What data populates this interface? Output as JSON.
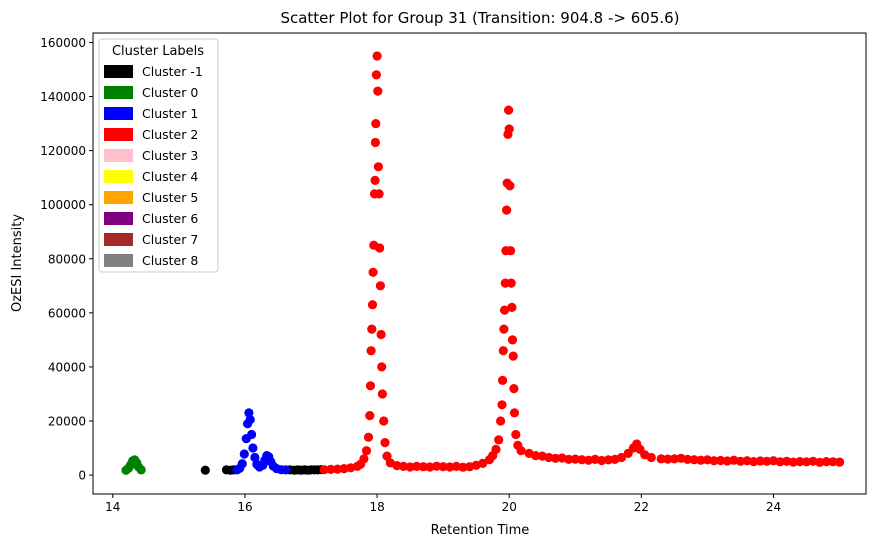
{
  "chart_data": {
    "type": "scatter",
    "title": "Scatter Plot for Group 31 (Transition: 904.8 -> 605.6)",
    "xlabel": "Retention Time",
    "ylabel": "OzESI Intensity",
    "xlim": [
      13.7,
      25.4
    ],
    "ylim": [
      -7000,
      163500
    ],
    "xticks": [
      14,
      16,
      18,
      20,
      22,
      24
    ],
    "yticks": [
      0,
      20000,
      40000,
      60000,
      80000,
      100000,
      120000,
      140000,
      160000
    ],
    "grid": false,
    "legend": {
      "title": "Cluster Labels",
      "placement": "top-left",
      "entries": [
        {
          "label": "Cluster -1",
          "color": "#000000"
        },
        {
          "label": "Cluster 0",
          "color": "#008000"
        },
        {
          "label": "Cluster 1",
          "color": "#0000ff"
        },
        {
          "label": "Cluster 2",
          "color": "#ff0000"
        },
        {
          "label": "Cluster 3",
          "color": "#ffc0cb"
        },
        {
          "label": "Cluster 4",
          "color": "#ffff00"
        },
        {
          "label": "Cluster 5",
          "color": "#ffa500"
        },
        {
          "label": "Cluster 6",
          "color": "#800080"
        },
        {
          "label": "Cluster 7",
          "color": "#a52a2a"
        },
        {
          "label": "Cluster 8",
          "color": "#808080"
        }
      ]
    },
    "series": [
      {
        "name": "Cluster -1",
        "color": "#000000",
        "points": [
          [
            15.4,
            1800
          ],
          [
            15.72,
            1900
          ],
          [
            15.78,
            1800
          ],
          [
            15.83,
            1900
          ],
          [
            16.68,
            1900
          ],
          [
            16.75,
            1800
          ],
          [
            16.8,
            1900
          ],
          [
            16.85,
            1800
          ],
          [
            16.9,
            1900
          ],
          [
            16.95,
            1800
          ],
          [
            17.0,
            1900
          ],
          [
            17.05,
            1900
          ],
          [
            17.1,
            1900
          ],
          [
            17.15,
            2000
          ]
        ]
      },
      {
        "name": "Cluster 0",
        "color": "#008000",
        "points": [
          [
            14.2,
            1800
          ],
          [
            14.24,
            2600
          ],
          [
            14.27,
            3800
          ],
          [
            14.3,
            5200
          ],
          [
            14.33,
            5600
          ],
          [
            14.36,
            4600
          ],
          [
            14.39,
            3000
          ],
          [
            14.43,
            1900
          ]
        ]
      },
      {
        "name": "Cluster 1",
        "color": "#0000ff",
        "points": [
          [
            15.88,
            1900
          ],
          [
            15.92,
            2500
          ],
          [
            15.96,
            4200
          ],
          [
            15.99,
            7800
          ],
          [
            16.02,
            13500
          ],
          [
            16.04,
            19000
          ],
          [
            16.06,
            23000
          ],
          [
            16.08,
            20500
          ],
          [
            16.1,
            15000
          ],
          [
            16.12,
            10000
          ],
          [
            16.15,
            6500
          ],
          [
            16.18,
            4000
          ],
          [
            16.22,
            3000
          ],
          [
            16.27,
            3600
          ],
          [
            16.3,
            5500
          ],
          [
            16.33,
            7200
          ],
          [
            16.36,
            6800
          ],
          [
            16.39,
            5000
          ],
          [
            16.43,
            3300
          ],
          [
            16.48,
            2400
          ],
          [
            16.55,
            2000
          ],
          [
            16.62,
            1900
          ]
        ]
      },
      {
        "name": "Cluster 2",
        "color": "#ff0000",
        "points": [
          [
            17.2,
            2000
          ],
          [
            17.3,
            2100
          ],
          [
            17.4,
            2200
          ],
          [
            17.5,
            2400
          ],
          [
            17.6,
            2700
          ],
          [
            17.7,
            3200
          ],
          [
            17.75,
            4000
          ],
          [
            17.8,
            6000
          ],
          [
            17.84,
            9000
          ],
          [
            17.87,
            14000
          ],
          [
            17.89,
            22000
          ],
          [
            17.9,
            33000
          ],
          [
            17.91,
            46000
          ],
          [
            17.92,
            54000
          ],
          [
            17.93,
            63000
          ],
          [
            17.94,
            75000
          ],
          [
            17.95,
            85000
          ],
          [
            17.96,
            104000
          ],
          [
            17.97,
            109000
          ],
          [
            17.975,
            123000
          ],
          [
            17.98,
            130000
          ],
          [
            17.99,
            148000
          ],
          [
            18.0,
            155000
          ],
          [
            18.01,
            142000
          ],
          [
            18.02,
            114000
          ],
          [
            18.03,
            104000
          ],
          [
            18.04,
            84000
          ],
          [
            18.05,
            70000
          ],
          [
            18.06,
            52000
          ],
          [
            18.07,
            40000
          ],
          [
            18.08,
            30000
          ],
          [
            18.1,
            20000
          ],
          [
            18.12,
            12000
          ],
          [
            18.15,
            7000
          ],
          [
            18.2,
            4500
          ],
          [
            18.3,
            3500
          ],
          [
            18.4,
            3200
          ],
          [
            18.5,
            3000
          ],
          [
            18.6,
            3200
          ],
          [
            18.7,
            3100
          ],
          [
            18.8,
            3000
          ],
          [
            18.9,
            3300
          ],
          [
            19.0,
            3100
          ],
          [
            19.1,
            3000
          ],
          [
            19.2,
            3200
          ],
          [
            19.3,
            2900
          ],
          [
            19.4,
            3100
          ],
          [
            19.5,
            3600
          ],
          [
            19.6,
            4300
          ],
          [
            19.7,
            5700
          ],
          [
            19.75,
            7200
          ],
          [
            19.8,
            9500
          ],
          [
            19.84,
            13000
          ],
          [
            19.87,
            20000
          ],
          [
            19.89,
            26000
          ],
          [
            19.9,
            35000
          ],
          [
            19.91,
            46000
          ],
          [
            19.92,
            54000
          ],
          [
            19.93,
            61000
          ],
          [
            19.94,
            71000
          ],
          [
            19.95,
            83000
          ],
          [
            19.96,
            98000
          ],
          [
            19.97,
            108000
          ],
          [
            19.98,
            126000
          ],
          [
            19.99,
            135000
          ],
          [
            20.0,
            128000
          ],
          [
            20.01,
            107000
          ],
          [
            20.02,
            83000
          ],
          [
            20.03,
            71000
          ],
          [
            20.04,
            62000
          ],
          [
            20.05,
            50000
          ],
          [
            20.06,
            44000
          ],
          [
            20.07,
            32000
          ],
          [
            20.08,
            23000
          ],
          [
            20.1,
            15000
          ],
          [
            20.13,
            11000
          ],
          [
            20.18,
            9000
          ],
          [
            20.3,
            8000
          ],
          [
            20.4,
            7200
          ],
          [
            20.5,
            7000
          ],
          [
            20.6,
            6500
          ],
          [
            20.7,
            6200
          ],
          [
            20.8,
            6300
          ],
          [
            20.9,
            5800
          ],
          [
            21.0,
            5900
          ],
          [
            21.1,
            5700
          ],
          [
            21.2,
            5500
          ],
          [
            21.3,
            5800
          ],
          [
            21.4,
            5400
          ],
          [
            21.5,
            5600
          ],
          [
            21.6,
            5800
          ],
          [
            21.7,
            6500
          ],
          [
            21.8,
            8000
          ],
          [
            21.88,
            10000
          ],
          [
            21.93,
            11500
          ],
          [
            21.98,
            9500
          ],
          [
            22.05,
            7500
          ],
          [
            22.15,
            6500
          ],
          [
            22.3,
            6000
          ],
          [
            22.4,
            5900
          ],
          [
            22.5,
            6000
          ],
          [
            22.6,
            6200
          ],
          [
            22.7,
            5800
          ],
          [
            22.8,
            5700
          ],
          [
            22.9,
            5500
          ],
          [
            23.0,
            5600
          ],
          [
            23.1,
            5300
          ],
          [
            23.2,
            5400
          ],
          [
            23.3,
            5200
          ],
          [
            23.4,
            5500
          ],
          [
            23.5,
            5100
          ],
          [
            23.6,
            5300
          ],
          [
            23.7,
            5000
          ],
          [
            23.8,
            5200
          ],
          [
            23.9,
            5100
          ],
          [
            24.0,
            5300
          ],
          [
            24.1,
            4900
          ],
          [
            24.2,
            5100
          ],
          [
            24.3,
            4800
          ],
          [
            24.4,
            5000
          ],
          [
            24.5,
            4900
          ],
          [
            24.6,
            5100
          ],
          [
            24.7,
            4700
          ],
          [
            24.8,
            5000
          ],
          [
            24.9,
            4900
          ],
          [
            25.0,
            4800
          ]
        ]
      }
    ]
  }
}
